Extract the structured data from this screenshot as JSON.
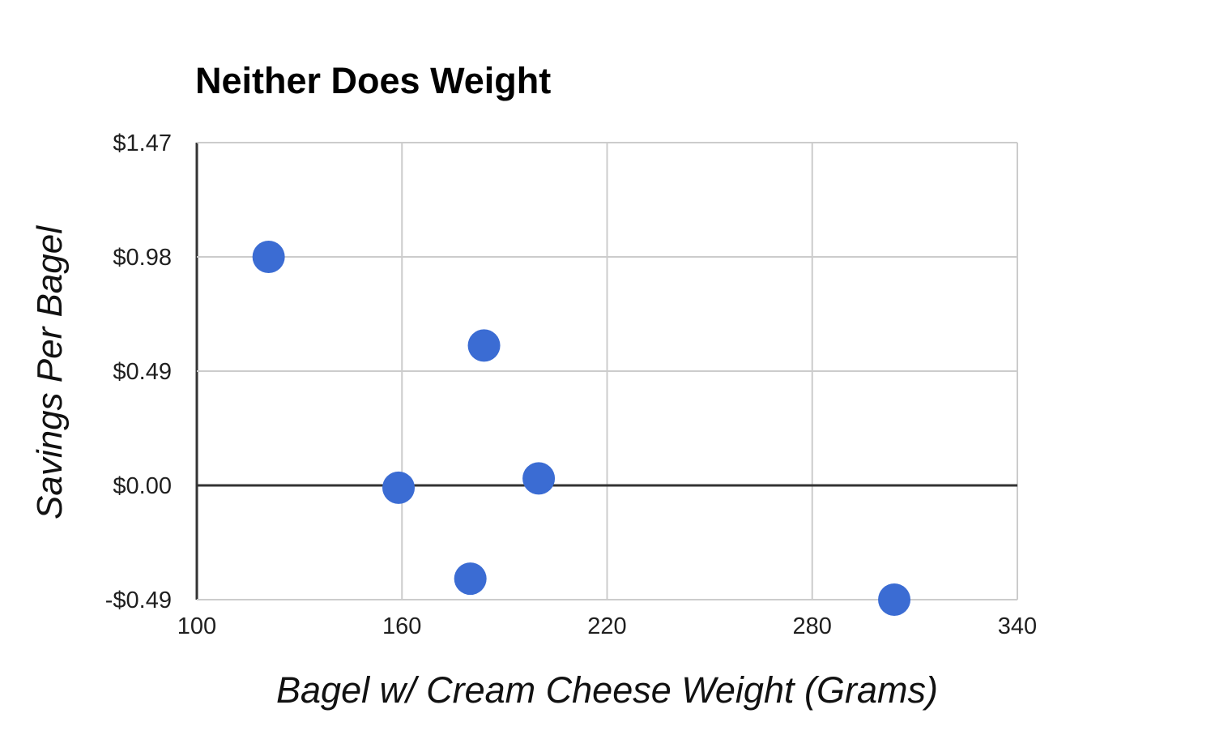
{
  "chart_data": {
    "type": "scatter",
    "title": "Neither Does Weight",
    "xlabel": "Bagel w/ Cream Cheese Weight (Grams)",
    "ylabel": "Savings Per Bagel",
    "xlim": [
      100,
      340
    ],
    "ylim": [
      -0.49,
      1.47
    ],
    "x_ticks": [
      "100",
      "160",
      "220",
      "280",
      "340"
    ],
    "x_tick_values": [
      100,
      160,
      220,
      280,
      340
    ],
    "y_ticks": [
      "$1.47",
      "$0.98",
      "$0.49",
      "$0.00",
      "-$0.49"
    ],
    "y_tick_values": [
      1.47,
      0.98,
      0.49,
      0.0,
      -0.49
    ],
    "grid": true,
    "legend_position": "none",
    "series": [
      {
        "name": "Savings Per Bagel",
        "points": [
          {
            "x": 121,
            "y": 0.98
          },
          {
            "x": 159,
            "y": -0.01
          },
          {
            "x": 180,
            "y": -0.4
          },
          {
            "x": 184,
            "y": 0.6
          },
          {
            "x": 200,
            "y": 0.03
          },
          {
            "x": 304,
            "y": -0.49
          }
        ]
      }
    ],
    "colors": {
      "point_color": "#3B6CD3",
      "grid_color": "#CCCCCC",
      "axis_color": "#333333",
      "tick_label_color": "#1F1F1F",
      "title_color": "#000000",
      "background": "#FFFFFF"
    }
  }
}
